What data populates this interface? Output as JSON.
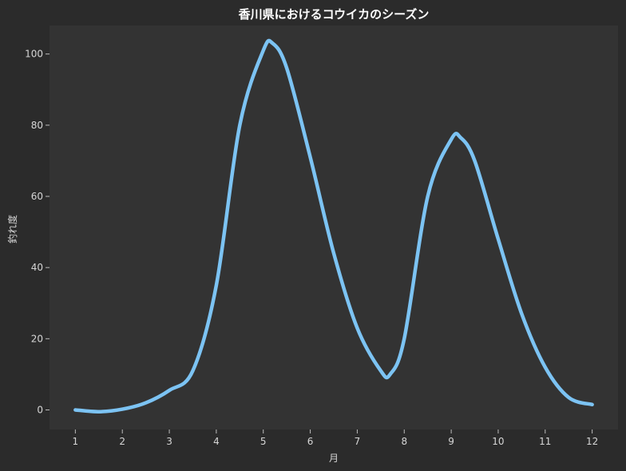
{
  "chart_data": {
    "type": "line",
    "title": "香川県におけるコウイカのシーズン",
    "xlabel": "月",
    "ylabel": "釣れ度",
    "x_ticks": [
      "1",
      "2",
      "3",
      "4",
      "5",
      "6",
      "7",
      "8",
      "9",
      "10",
      "11",
      "12"
    ],
    "y_ticks": [
      "0",
      "20",
      "40",
      "60",
      "80",
      "100"
    ],
    "xlim": [
      0.45,
      12.55
    ],
    "ylim": [
      -5.5,
      108
    ],
    "grid": false,
    "series": [
      {
        "color": "#7cc3f3",
        "x": [
          1,
          1.5,
          2,
          2.5,
          3,
          3.5,
          4,
          4.5,
          5,
          5.2,
          5.5,
          6,
          6.5,
          7,
          7.5,
          7.7,
          8,
          8.5,
          9,
          9.2,
          9.5,
          10,
          10.5,
          11,
          11.5,
          12
        ],
        "y": [
          0,
          -0.5,
          0.2,
          2,
          5.5,
          11,
          35,
          80,
          101,
          103,
          96,
          71,
          44,
          23,
          11,
          10,
          20,
          60,
          76,
          76.5,
          70,
          48,
          27,
          12,
          3.5,
          1.5
        ]
      }
    ]
  },
  "colors": {
    "page_background": "#2b2b2b",
    "plot_background": "#333333",
    "line": "#7cc3f3",
    "text": "#d6d6d6",
    "title_text": "#ffffff"
  }
}
